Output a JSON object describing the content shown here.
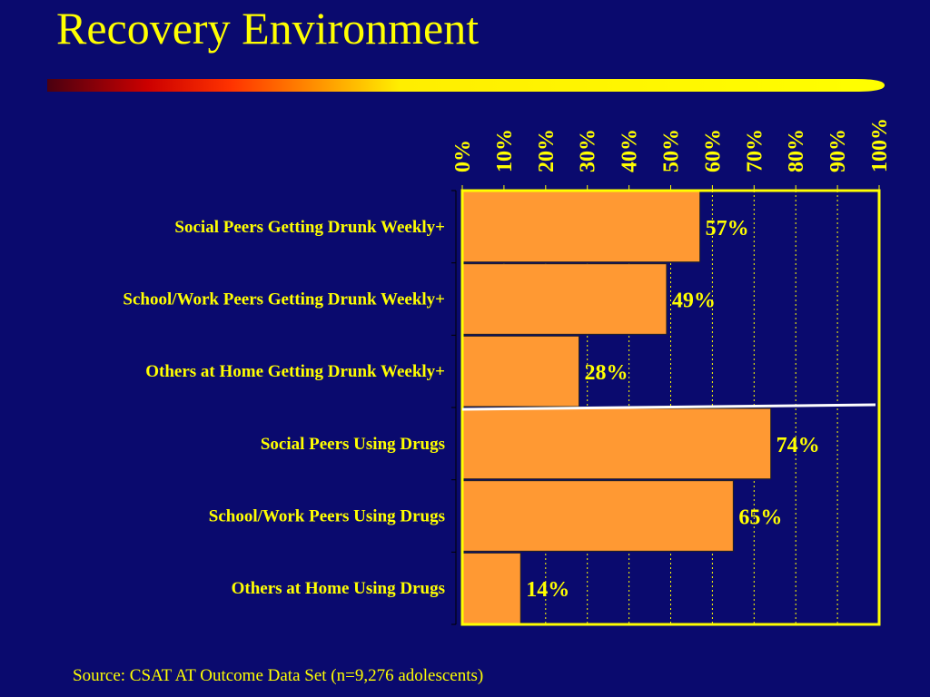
{
  "slide": {
    "title": "Recovery Environment",
    "source": "Source:  CSAT AT Outcome Data Set (n=9,276 adolescents)"
  },
  "colors": {
    "background": "#0a0a6e",
    "text": "#ffff00",
    "bar": "#ff9933",
    "divider": "#ffffff"
  },
  "chart_data": {
    "type": "bar",
    "orientation": "horizontal",
    "categories": [
      "Social Peers Getting Drunk Weekly+",
      "School/Work Peers Getting Drunk Weekly+",
      "Others at Home Getting Drunk Weekly+",
      "Social Peers Using Drugs",
      "School/Work Peers Using Drugs",
      "Others at Home Using Drugs"
    ],
    "values": [
      57,
      49,
      28,
      74,
      65,
      14
    ],
    "value_labels": [
      "57%",
      "49%",
      "28%",
      "74%",
      "65%",
      "14%"
    ],
    "xlim": [
      0,
      100
    ],
    "x_ticks": [
      0,
      10,
      20,
      30,
      40,
      50,
      60,
      70,
      80,
      90,
      100
    ],
    "x_tick_labels": [
      "0%",
      "10%",
      "20%",
      "30%",
      "40%",
      "50%",
      "60%",
      "70%",
      "80%",
      "90%",
      "100%"
    ],
    "x_axis_position": "top",
    "grid": "vertical dotted",
    "divider_after_category": 3
  }
}
